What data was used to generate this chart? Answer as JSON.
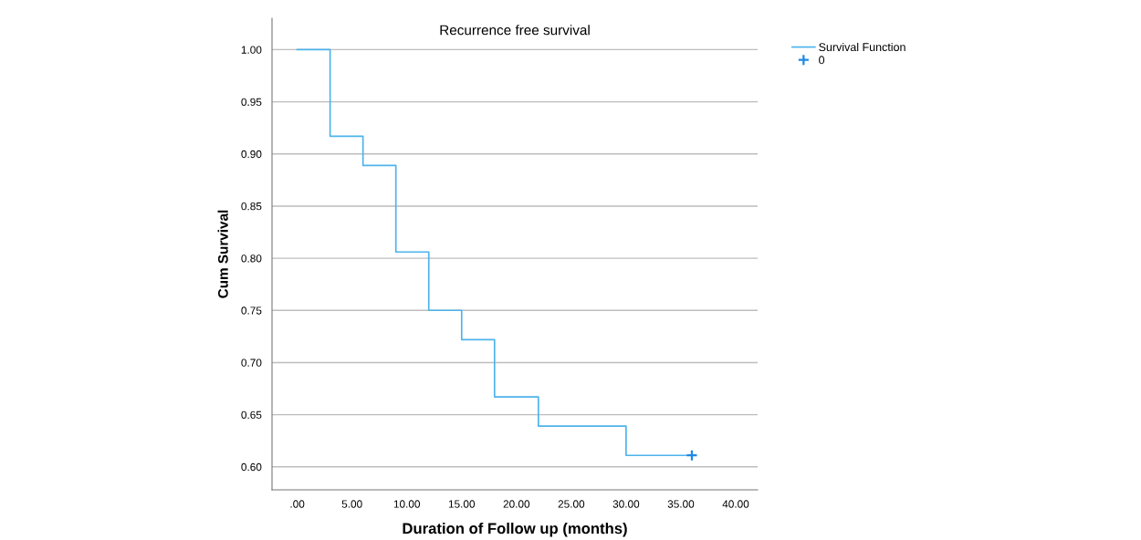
{
  "chart_data": {
    "type": "step",
    "title": "Recurrence free survival",
    "xlabel": "Duration of Follow up (months)",
    "ylabel": "Cum Survival",
    "series": [
      {
        "name": "Survival Function",
        "color": "#4db3ec",
        "x": [
          0,
          3,
          6,
          9,
          12,
          15,
          18,
          22,
          30,
          36
        ],
        "values": [
          1.0,
          0.917,
          0.889,
          0.806,
          0.75,
          0.722,
          0.667,
          0.639,
          0.611,
          0.611
        ]
      },
      {
        "name": "0",
        "type": "scatter",
        "marker": "cross",
        "color": "#1e88e5",
        "x": [
          36
        ],
        "values": [
          0.611
        ]
      }
    ],
    "xlim": [
      -2.3,
      42
    ],
    "xticks": [
      {
        "value": 0,
        "label": ".00"
      },
      {
        "value": 5,
        "label": "5.00"
      },
      {
        "value": 10,
        "label": "10.00"
      },
      {
        "value": 15,
        "label": "15.00"
      },
      {
        "value": 20,
        "label": "20.00"
      },
      {
        "value": 25,
        "label": "25.00"
      },
      {
        "value": 30,
        "label": "30.00"
      },
      {
        "value": 35,
        "label": "35.00"
      },
      {
        "value": 40,
        "label": "40.00"
      }
    ],
    "ylim": [
      0.578,
      1.03
    ],
    "yticks": [
      {
        "value": 0.6,
        "label": "0.60"
      },
      {
        "value": 0.65,
        "label": "0.65"
      },
      {
        "value": 0.7,
        "label": "0.70"
      },
      {
        "value": 0.75,
        "label": "0.75"
      },
      {
        "value": 0.8,
        "label": "0.80"
      },
      {
        "value": 0.85,
        "label": "0.85"
      },
      {
        "value": 0.9,
        "label": "0.90"
      },
      {
        "value": 0.95,
        "label": "0.95"
      },
      {
        "value": 1.0,
        "label": "1.00"
      }
    ],
    "grid": "y",
    "legend": "top right"
  }
}
